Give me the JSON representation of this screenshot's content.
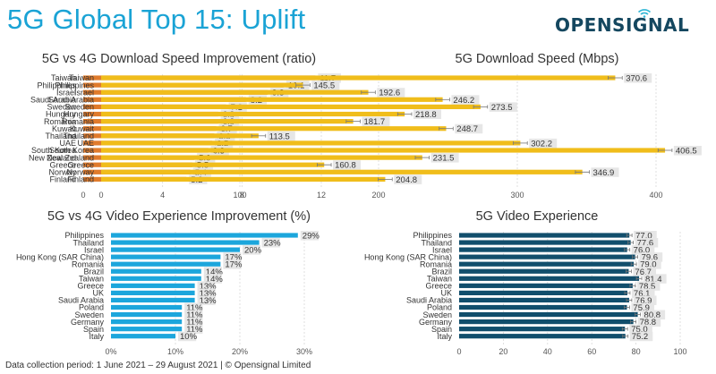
{
  "header": {
    "title": "5G Global Top 15: Uplift",
    "logo_text": "OPENSIGNAL"
  },
  "footer": {
    "text": "Data collection period: 1 June 2021 – 29 August 2021  |  © Opensignal Limited"
  },
  "chart_data": [
    {
      "id": "dl-improvement",
      "type": "bar",
      "orientation": "horizontal",
      "title": "5G vs 4G Download Speed Improvement (ratio)",
      "color": "#e07b2c",
      "categories": [
        "Taiwan",
        "Philippines",
        "Israel",
        "Saudi Arabia",
        "Sweden",
        "Hungary",
        "Romania",
        "Kuwait",
        "Thailand",
        "UAE",
        "South Korea",
        "New Zealand",
        "Greece",
        "Norway",
        "Finland"
      ],
      "values": [
        11.7,
        10.1,
        9.3,
        8.2,
        7.2,
        6.8,
        6.8,
        6.7,
        6.6,
        6.5,
        6.3,
        5.6,
        5.5,
        5.4,
        5.2
      ],
      "value_labels": [
        "11.7",
        "10.1",
        "9.3",
        "8.2",
        "7.2",
        "6.8",
        "6.8",
        "6.7",
        "6.6",
        "6.5",
        "6.3",
        "5.6",
        "5.5",
        "5.4",
        "5.2"
      ],
      "xlim": [
        0,
        12
      ],
      "xticks": [
        0,
        4,
        8,
        12
      ],
      "xtick_labels": [
        "0",
        "4",
        "8",
        "12"
      ],
      "error_bars": false,
      "grid": true
    },
    {
      "id": "dl-speed",
      "type": "bar",
      "orientation": "horizontal",
      "title": "5G Download Speed (Mbps)",
      "color": "#f0bd1b",
      "categories": [
        "Taiwan",
        "Philippines",
        "Israel",
        "Saudi Arabia",
        "Sweden",
        "Hungary",
        "Romania",
        "Kuwait",
        "Thailand",
        "UAE",
        "South Korea",
        "New Zealand",
        "Greece",
        "Norway",
        "Finland"
      ],
      "values": [
        370.6,
        145.5,
        192.6,
        246.2,
        273.5,
        218.8,
        181.7,
        248.7,
        113.5,
        302.2,
        406.5,
        231.5,
        160.8,
        346.9,
        204.8
      ],
      "value_labels": [
        "370.6",
        "145.5",
        "192.6",
        "246.2",
        "273.5",
        "218.8",
        "181.7",
        "248.7",
        "113.5",
        "302.2",
        "406.5",
        "231.5",
        "160.8",
        "346.9",
        "204.8"
      ],
      "xlim": [
        0,
        420
      ],
      "xticks": [
        0,
        100,
        200,
        300,
        400
      ],
      "xtick_labels": [
        "0",
        "100",
        "200",
        "300",
        "400"
      ],
      "error_bars": true,
      "grid": true
    },
    {
      "id": "video-improvement",
      "type": "bar",
      "orientation": "horizontal",
      "title": "5G vs 4G Video Experience Improvement (%)",
      "color": "#1ca6dc",
      "categories": [
        "Philippines",
        "Thailand",
        "Israel",
        "Hong Kong (SAR China)",
        "Romania",
        "Brazil",
        "Taiwan",
        "Greece",
        "UK",
        "Saudi Arabia",
        "Poland",
        "Sweden",
        "Germany",
        "Spain",
        "Italy"
      ],
      "values": [
        29,
        23,
        20,
        17,
        17,
        14,
        14,
        13,
        13,
        13,
        11,
        11,
        11,
        11,
        10
      ],
      "value_labels": [
        "29%",
        "23%",
        "20%",
        "17%",
        "17%",
        "14%",
        "14%",
        "13%",
        "13%",
        "13%",
        "11%",
        "11%",
        "11%",
        "11%",
        "10%"
      ],
      "xlim": [
        0,
        30
      ],
      "xticks": [
        0,
        10,
        20,
        30
      ],
      "xtick_labels": [
        "0%",
        "10%",
        "20%",
        "30%"
      ],
      "error_bars": false,
      "grid": true
    },
    {
      "id": "video-experience",
      "type": "bar",
      "orientation": "horizontal",
      "title": "5G Video Experience",
      "color": "#114e6c",
      "categories": [
        "Philippines",
        "Thailand",
        "Israel",
        "Hong Kong (SAR China)",
        "Romania",
        "Brazil",
        "Taiwan",
        "Greece",
        "UK",
        "Saudi Arabia",
        "Poland",
        "Sweden",
        "Germany",
        "Spain",
        "Italy"
      ],
      "values": [
        77.0,
        77.6,
        76.0,
        79.6,
        79.0,
        76.7,
        81.4,
        78.5,
        76.1,
        76.9,
        75.9,
        80.8,
        78.8,
        75.0,
        75.2
      ],
      "value_labels": [
        "77.0",
        "77.6",
        "76.0",
        "79.6",
        "79.0",
        "76.7",
        "81.4",
        "78.5",
        "76.1",
        "76.9",
        "75.9",
        "80.8",
        "78.8",
        "75.0",
        "75.2"
      ],
      "xlim": [
        0,
        100
      ],
      "xticks": [
        0,
        20,
        40,
        60,
        80,
        100
      ],
      "xtick_labels": [
        "0",
        "20",
        "40",
        "60",
        "80",
        "100"
      ],
      "error_bars": true,
      "grid": true
    }
  ]
}
